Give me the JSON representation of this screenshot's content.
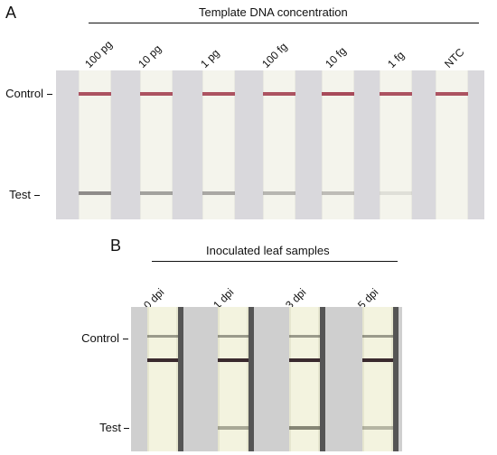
{
  "panel_a": {
    "letter": "A",
    "header": "Template DNA concentration",
    "lanes": [
      {
        "label": "100 pg",
        "control_intensity": 0.95,
        "test_intensity": 0.75
      },
      {
        "label": "10 pg",
        "control_intensity": 0.95,
        "test_intensity": 0.6
      },
      {
        "label": "1 pg",
        "control_intensity": 0.95,
        "test_intensity": 0.55
      },
      {
        "label": "100 fg",
        "control_intensity": 0.95,
        "test_intensity": 0.45
      },
      {
        "label": "10 fg",
        "control_intensity": 1.0,
        "test_intensity": 0.4
      },
      {
        "label": "1 fg",
        "control_intensity": 0.95,
        "test_intensity": 0.15
      },
      {
        "label": "NTC",
        "control_intensity": 0.95,
        "test_intensity": 0.0
      }
    ],
    "row_labels": {
      "control": "Control",
      "test": "Test"
    }
  },
  "panel_b": {
    "letter": "B",
    "header": "Inoculated leaf samples",
    "lanes": [
      {
        "label": "0 dpi",
        "control_intensity": 1.0,
        "test_intensity": 0.0
      },
      {
        "label": "1 dpi",
        "control_intensity": 1.0,
        "test_intensity": 0.55
      },
      {
        "label": "3 dpi",
        "control_intensity": 1.0,
        "test_intensity": 0.8
      },
      {
        "label": "5 dpi",
        "control_intensity": 1.0,
        "test_intensity": 0.45
      }
    ],
    "row_labels": {
      "control": "Control",
      "test": "Test"
    }
  },
  "colors": {
    "control_band_a": "#a84a5a",
    "test_band_a": "#6d6a6a",
    "control_band_b": "#3a2a2e",
    "test_band_b": "#6a6a5a"
  }
}
